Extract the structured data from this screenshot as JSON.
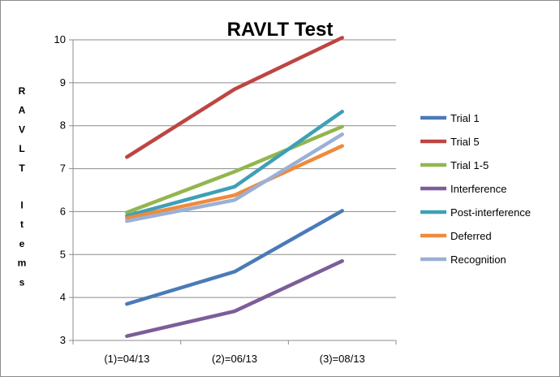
{
  "chart_data": {
    "type": "line",
    "title": "RAVLT Test",
    "xlabel": "",
    "ylabel": "RAVLT Items",
    "categories": [
      "(1)=04/13",
      "(2)=06/13",
      "(3)=08/13"
    ],
    "ylim": [
      3,
      10
    ],
    "yticks": [
      "3",
      "4",
      "5",
      "6",
      "7",
      "8",
      "9",
      "10"
    ],
    "grid": true,
    "legend_position": "right",
    "series": [
      {
        "name": "Trial 1",
        "color": "#4a7ab8",
        "values": [
          3.85,
          4.6,
          6.02
        ]
      },
      {
        "name": "Trial 5",
        "color": "#bd4542",
        "values": [
          7.27,
          8.85,
          10.05
        ]
      },
      {
        "name": "Trial 1-5",
        "color": "#93b54f",
        "values": [
          5.98,
          6.93,
          7.98
        ]
      },
      {
        "name": "Interference",
        "color": "#7c5d99",
        "values": [
          3.1,
          3.68,
          4.85
        ]
      },
      {
        "name": "Post-interference",
        "color": "#3ea0b5",
        "values": [
          5.9,
          6.58,
          8.33
        ]
      },
      {
        "name": "Deferred",
        "color": "#ef8a3c",
        "values": [
          5.85,
          6.38,
          7.53
        ]
      },
      {
        "name": "Recognition",
        "color": "#9ab0d6",
        "values": [
          5.78,
          6.27,
          7.8
        ]
      }
    ]
  }
}
